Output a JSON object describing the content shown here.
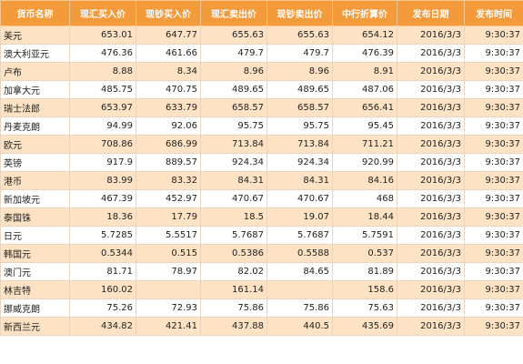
{
  "headers": [
    "货币名称",
    "现汇买入价",
    "现钞买入价",
    "现汇卖出价",
    "现钞卖出价",
    "中行折算价",
    "发布日期",
    "发布时间"
  ],
  "rows": [
    [
      "美元",
      "653.01",
      "647.77",
      "655.63",
      "655.63",
      "654.12",
      "2016/3/3",
      "9:30:37"
    ],
    [
      "澳大利亚元",
      "476.36",
      "461.66",
      "479.7",
      "479.7",
      "476.39",
      "2016/3/3",
      "9:30:37"
    ],
    [
      "卢布",
      "8.88",
      "8.34",
      "8.96",
      "8.96",
      "8.91",
      "2016/3/3",
      "9:30:37"
    ],
    [
      "加拿大元",
      "485.75",
      "470.75",
      "489.65",
      "489.65",
      "487.06",
      "2016/3/3",
      "9:30:37"
    ],
    [
      "瑞士法郎",
      "653.97",
      "633.79",
      "658.57",
      "658.57",
      "656.41",
      "2016/3/3",
      "9:30:37"
    ],
    [
      "丹麦克朗",
      "94.99",
      "92.06",
      "95.75",
      "95.75",
      "95.45",
      "2016/3/3",
      "9:30:37"
    ],
    [
      "欧元",
      "708.86",
      "686.99",
      "713.84",
      "713.84",
      "711.21",
      "2016/3/3",
      "9:30:37"
    ],
    [
      "英镑",
      "917.9",
      "889.57",
      "924.34",
      "924.34",
      "920.99",
      "2016/3/3",
      "9:30:37"
    ],
    [
      "港币",
      "83.99",
      "83.32",
      "84.31",
      "84.31",
      "84.16",
      "2016/3/3",
      "9:30:37"
    ],
    [
      "新加坡元",
      "467.39",
      "452.97",
      "470.67",
      "470.67",
      "468",
      "2016/3/3",
      "9:30:37"
    ],
    [
      "泰国铢",
      "18.36",
      "17.79",
      "18.5",
      "19.07",
      "18.44",
      "2016/3/3",
      "9:30:37"
    ],
    [
      "日元",
      "5.7285",
      "5.5517",
      "5.7687",
      "5.7687",
      "5.7591",
      "2016/3/3",
      "9:30:37"
    ],
    [
      "韩国元",
      "0.5344",
      "0.515",
      "0.5386",
      "0.5588",
      "0.537",
      "2016/3/3",
      "9:30:37"
    ],
    [
      "澳门元",
      "81.71",
      "78.97",
      "82.02",
      "84.65",
      "81.89",
      "2016/3/3",
      "9:30:37"
    ],
    [
      "林吉特",
      "160.02",
      "",
      "161.14",
      "",
      "158.6",
      "2016/3/3",
      "9:30:37"
    ],
    [
      "挪威克朗",
      "75.26",
      "72.93",
      "75.86",
      "75.86",
      "75.63",
      "2016/3/3",
      "9:30:37"
    ],
    [
      "新西兰元",
      "434.82",
      "421.41",
      "437.88",
      "440.5",
      "435.69",
      "2016/3/3",
      "9:30:37"
    ]
  ],
  "colors": {
    "header_bg": "#f39a3b",
    "header_text": "#ffffff",
    "stripe_bg": "#fde3c4",
    "row_bg": "#ffffff"
  }
}
